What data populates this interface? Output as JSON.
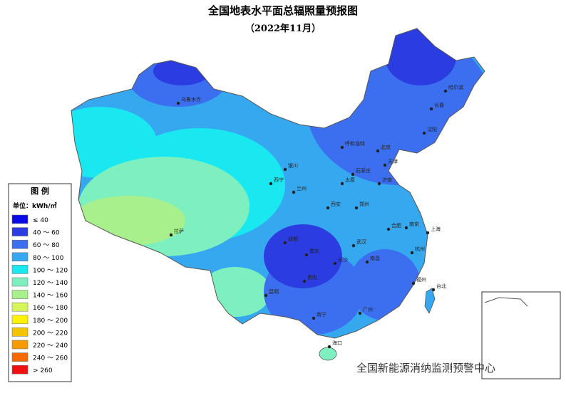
{
  "header": {
    "title": "全国地表水平面总辐照量预报图",
    "subtitle": "（2022年11月）"
  },
  "legend": {
    "title": "图  例",
    "unit": "单位：kWh/㎡",
    "items": [
      {
        "label": "≤ 40",
        "color": "#0a0ae6"
      },
      {
        "label": "40 ～ 60",
        "color": "#2b3de0"
      },
      {
        "label": "60 ～ 80",
        "color": "#3c6ff0"
      },
      {
        "label": "80 ～ 100",
        "color": "#35a8f0"
      },
      {
        "label": "100 ～ 120",
        "color": "#19e8f0"
      },
      {
        "label": "120 ～ 140",
        "color": "#7ef0c0"
      },
      {
        "label": "140 ～ 160",
        "color": "#a8f08c"
      },
      {
        "label": "160 ～ 180",
        "color": "#d6f55a"
      },
      {
        "label": "180 ～ 200",
        "color": "#fff200"
      },
      {
        "label": "200 ～ 220",
        "color": "#f5c400"
      },
      {
        "label": "220 ～ 240",
        "color": "#f59a00"
      },
      {
        "label": "240 ～ 260",
        "color": "#f56a00"
      },
      {
        "label": "> 260",
        "color": "#f01010"
      }
    ]
  },
  "cities": [
    "乌鲁木齐",
    "哈尔滨",
    "长春",
    "沈阳",
    "呼和浩特",
    "北京",
    "天津",
    "石家庄",
    "太原",
    "银川",
    "西宁",
    "兰州",
    "济南",
    "郑州",
    "西安",
    "合肥",
    "南京",
    "上海",
    "杭州",
    "武汉",
    "成都",
    "重庆",
    "长沙",
    "南昌",
    "福州",
    "台北",
    "贵阳",
    "昆明",
    "南宁",
    "广州",
    "海口",
    "拉萨"
  ],
  "watermark": "全国新能源消纳监测预警中心"
}
